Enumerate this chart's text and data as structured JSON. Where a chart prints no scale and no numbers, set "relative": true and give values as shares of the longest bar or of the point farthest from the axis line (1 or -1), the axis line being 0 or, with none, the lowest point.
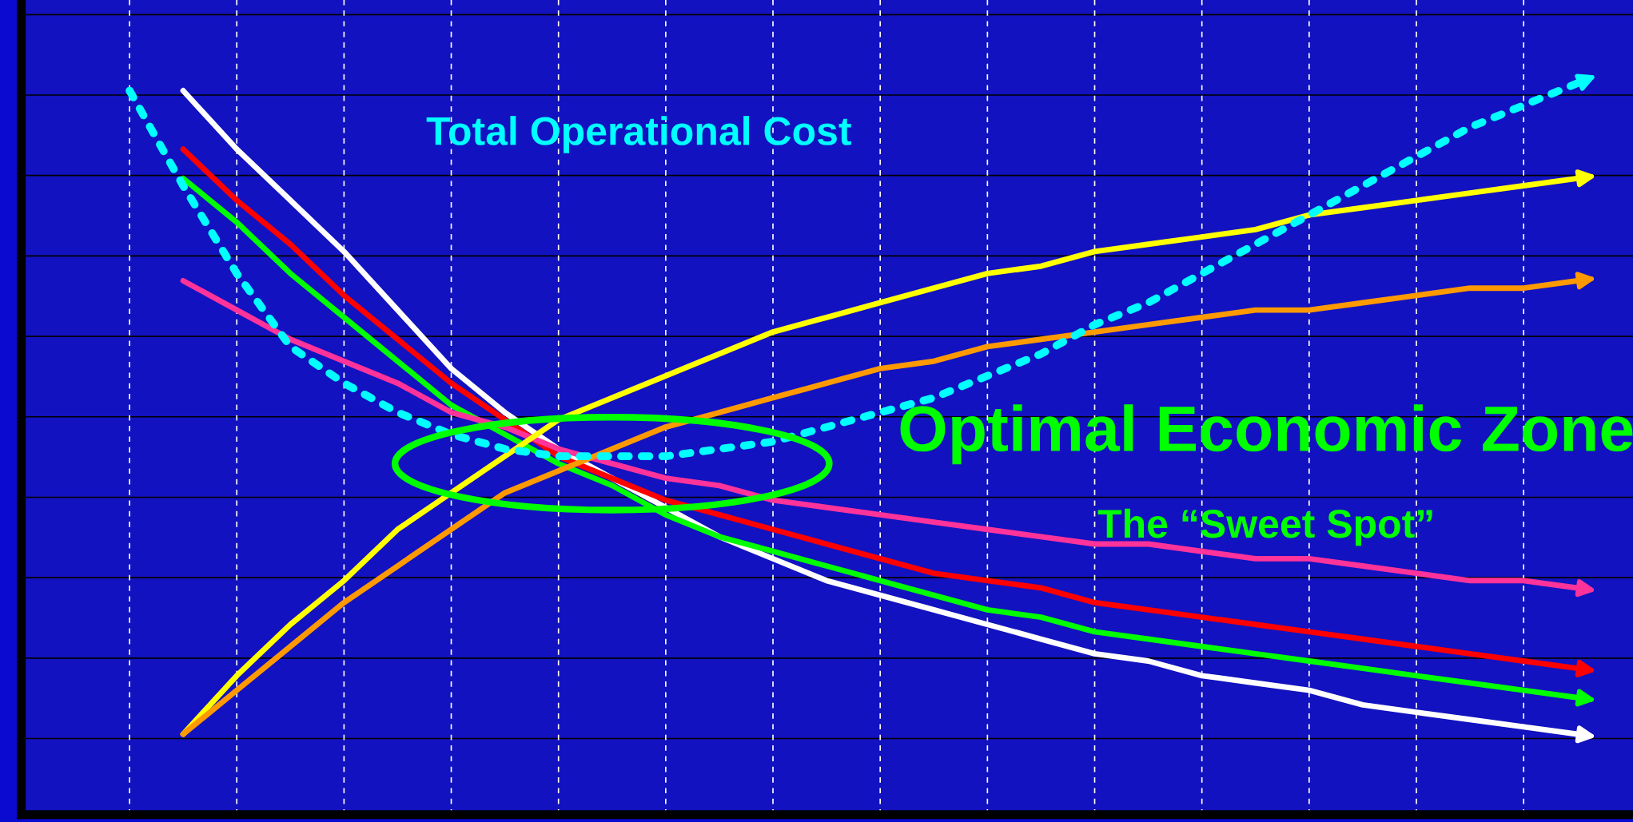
{
  "chart_data": {
    "type": "line",
    "relative": true,
    "grid": true,
    "marker": "none",
    "categories": [
      null,
      null,
      null,
      null,
      null,
      null,
      null,
      null,
      null,
      null,
      null,
      null,
      null,
      null,
      null,
      null,
      null,
      null,
      null,
      null,
      null,
      null,
      null,
      null,
      null,
      null,
      null,
      null
    ],
    "series": [
      {
        "color": "#ffffff",
        "line_style": "solid",
        "values": [
          null,
          0.99,
          0.91,
          0.84,
          0.77,
          0.69,
          0.61,
          0.55,
          0.5,
          0.46,
          0.42,
          0.38,
          0.35,
          0.32,
          0.3,
          0.28,
          0.26,
          0.24,
          0.22,
          0.21,
          0.19,
          0.18,
          0.17,
          0.15,
          0.14,
          0.13,
          0.12,
          0.11
        ]
      },
      {
        "color": "#ff0000",
        "line_style": "solid",
        "values": [
          null,
          0.91,
          0.84,
          0.78,
          0.71,
          0.65,
          0.59,
          0.54,
          0.49,
          0.46,
          0.43,
          0.41,
          0.39,
          0.37,
          0.35,
          0.33,
          0.32,
          0.31,
          0.29,
          0.28,
          0.27,
          0.26,
          0.25,
          0.24,
          0.23,
          0.22,
          0.21,
          0.2
        ]
      },
      {
        "color": "#00ff00",
        "line_style": "solid",
        "values": [
          null,
          0.87,
          0.81,
          0.74,
          0.68,
          0.62,
          0.56,
          0.52,
          0.48,
          0.45,
          0.41,
          0.38,
          0.36,
          0.34,
          0.32,
          0.3,
          0.28,
          0.27,
          0.25,
          0.24,
          0.23,
          0.22,
          0.21,
          0.2,
          0.19,
          0.18,
          0.17,
          0.16
        ]
      },
      {
        "color": "#ff3399",
        "line_style": "solid",
        "values": [
          null,
          0.73,
          0.69,
          0.65,
          0.62,
          0.59,
          0.55,
          0.53,
          0.5,
          0.48,
          0.46,
          0.45,
          0.43,
          0.42,
          0.41,
          0.4,
          0.39,
          0.38,
          0.37,
          0.37,
          0.36,
          0.35,
          0.35,
          0.34,
          0.33,
          0.32,
          0.32,
          0.31
        ]
      },
      {
        "color": "#ffff00",
        "line_style": "solid",
        "values": [
          null,
          0.11,
          0.19,
          0.26,
          0.32,
          0.39,
          0.44,
          0.49,
          0.54,
          0.57,
          0.6,
          0.63,
          0.66,
          0.68,
          0.7,
          0.72,
          0.74,
          0.75,
          0.77,
          0.78,
          0.79,
          0.8,
          0.82,
          0.83,
          0.84,
          0.85,
          0.86,
          0.87
        ]
      },
      {
        "color": "#ff9900",
        "line_style": "solid",
        "values": [
          null,
          0.11,
          0.17,
          0.23,
          0.29,
          0.34,
          0.39,
          0.44,
          0.47,
          0.5,
          0.53,
          0.55,
          0.57,
          0.59,
          0.61,
          0.62,
          0.64,
          0.65,
          0.66,
          0.67,
          0.68,
          0.69,
          0.69,
          0.7,
          0.71,
          0.72,
          0.72,
          0.73
        ]
      },
      {
        "color": "#00ffff",
        "line_style": "dotted",
        "values": [
          0.99,
          0.86,
          0.74,
          0.64,
          0.59,
          0.55,
          0.52,
          0.5,
          0.49,
          0.49,
          0.49,
          0.5,
          0.51,
          0.53,
          0.55,
          0.57,
          0.6,
          0.63,
          0.67,
          0.7,
          0.74,
          0.78,
          0.82,
          0.86,
          0.9,
          0.94,
          0.97,
          1.0
        ]
      }
    ],
    "annotations": [
      "Total Operational Cost",
      "Optimal Economic Zone",
      "The “Sweet Spot”"
    ]
  }
}
